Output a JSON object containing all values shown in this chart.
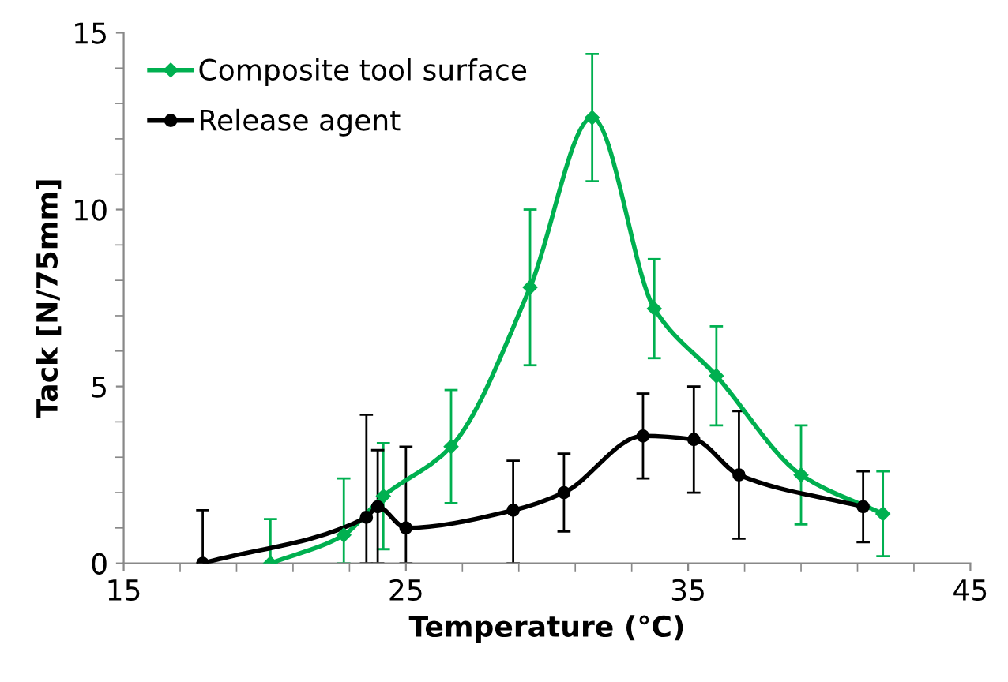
{
  "chart_data": {
    "type": "line",
    "xlabel": "Temperature (°C)",
    "ylabel": "Tack [N/75mm]",
    "xlim": [
      15,
      45
    ],
    "xticks": [
      15,
      25,
      35,
      45
    ],
    "ylim": [
      0,
      15
    ],
    "yticks": [
      0,
      5,
      10,
      15
    ],
    "grid": false,
    "legend": "top left",
    "series": [
      {
        "name": "Composite tool surface",
        "color": "#00b050",
        "marker": "diamond",
        "x": [
          20.2,
          22.8,
          24.2,
          26.6,
          29.4,
          31.6,
          33.8,
          36.0,
          39.0,
          41.9
        ],
        "values": [
          0,
          0.8,
          1.9,
          3.3,
          7.8,
          12.6,
          7.2,
          5.3,
          2.5,
          1.4
        ],
        "errors": [
          [
            0,
            1.25
          ],
          [
            0,
            2.4
          ],
          1.5,
          1.6,
          2.2,
          1.8,
          1.4,
          1.4,
          1.4,
          1.2
        ]
      },
      {
        "name": "Release agent",
        "color": "#000000",
        "marker": "circle",
        "x": [
          17.8,
          23.6,
          24.0,
          25.0,
          28.8,
          30.6,
          33.4,
          35.2,
          36.8,
          41.2
        ],
        "values": [
          0,
          1.3,
          1.6,
          1.0,
          1.5,
          2.0,
          3.6,
          3.5,
          2.5,
          1.6
        ],
        "errors": [
          [
            0,
            1.5
          ],
          [
            0,
            4.2
          ],
          [
            0,
            3.2
          ],
          [
            0,
            3.3
          ],
          [
            0,
            2.9
          ],
          1.1,
          1.2,
          1.5,
          1.8,
          1.0
        ]
      }
    ]
  }
}
